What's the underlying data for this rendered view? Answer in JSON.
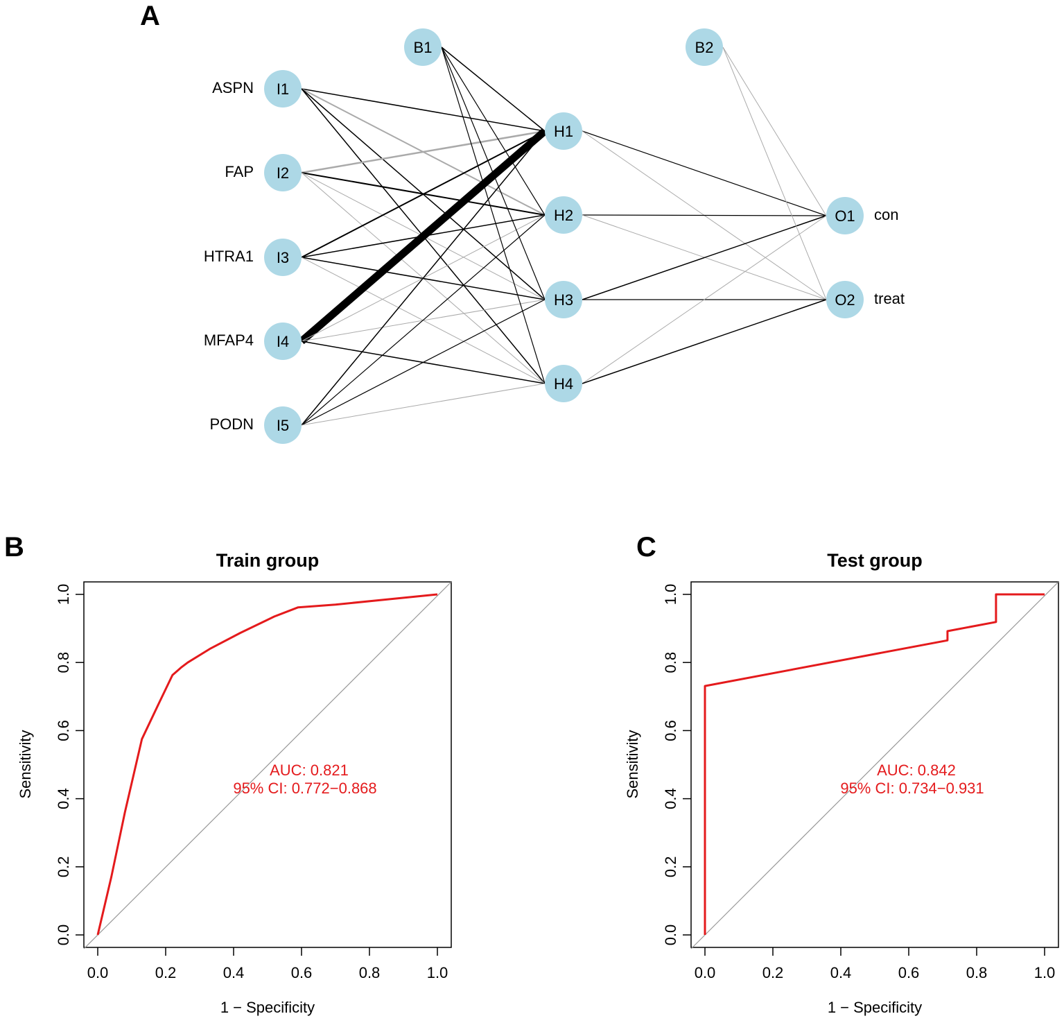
{
  "panels": {
    "a": "A",
    "b": "B",
    "c": "C"
  },
  "colors": {
    "node": "#add8e6",
    "positive": "#000000",
    "negative": "#aaaaaa",
    "roc": "#e41a1c",
    "diag": "#999999"
  },
  "chart_data": [
    {
      "type": "network",
      "panel": "A",
      "title": "",
      "layers": {
        "input": [
          {
            "id": "I1",
            "label": "ASPN"
          },
          {
            "id": "I2",
            "label": "FAP"
          },
          {
            "id": "I3",
            "label": "HTRA1"
          },
          {
            "id": "I4",
            "label": "MFAP4"
          },
          {
            "id": "I5",
            "label": "PODN"
          }
        ],
        "hidden": [
          {
            "id": "H1"
          },
          {
            "id": "H2"
          },
          {
            "id": "H3"
          },
          {
            "id": "H4"
          }
        ],
        "output": [
          {
            "id": "O1",
            "label": "con"
          },
          {
            "id": "O2",
            "label": "treat"
          }
        ],
        "bias": [
          {
            "id": "B1",
            "layer": "hidden"
          },
          {
            "id": "B2",
            "layer": "output"
          }
        ]
      },
      "edges": [
        {
          "from": "I1",
          "to": "H1",
          "sign": "pos",
          "weight": 1.5
        },
        {
          "from": "I1",
          "to": "H2",
          "sign": "neg",
          "weight": 2
        },
        {
          "from": "I1",
          "to": "H3",
          "sign": "pos",
          "weight": 1.5
        },
        {
          "from": "I1",
          "to": "H4",
          "sign": "pos",
          "weight": 1.5
        },
        {
          "from": "I2",
          "to": "H1",
          "sign": "neg",
          "weight": 2.5
        },
        {
          "from": "I2",
          "to": "H2",
          "sign": "pos",
          "weight": 2
        },
        {
          "from": "I2",
          "to": "H3",
          "sign": "neg",
          "weight": 1
        },
        {
          "from": "I2",
          "to": "H4",
          "sign": "neg",
          "weight": 1
        },
        {
          "from": "I3",
          "to": "H1",
          "sign": "pos",
          "weight": 2
        },
        {
          "from": "I3",
          "to": "H2",
          "sign": "pos",
          "weight": 1.5
        },
        {
          "from": "I3",
          "to": "H3",
          "sign": "pos",
          "weight": 1.5
        },
        {
          "from": "I3",
          "to": "H4",
          "sign": "neg",
          "weight": 1
        },
        {
          "from": "I4",
          "to": "H1",
          "sign": "pos",
          "weight": 11
        },
        {
          "from": "I4",
          "to": "H2",
          "sign": "neg",
          "weight": 1
        },
        {
          "from": "I4",
          "to": "H3",
          "sign": "neg",
          "weight": 1
        },
        {
          "from": "I4",
          "to": "H4",
          "sign": "pos",
          "weight": 1.5
        },
        {
          "from": "I5",
          "to": "H1",
          "sign": "pos",
          "weight": 1.5
        },
        {
          "from": "I5",
          "to": "H2",
          "sign": "pos",
          "weight": 1.2
        },
        {
          "from": "I5",
          "to": "H3",
          "sign": "pos",
          "weight": 1.2
        },
        {
          "from": "I5",
          "to": "H4",
          "sign": "neg",
          "weight": 1
        },
        {
          "from": "B1",
          "to": "H1",
          "sign": "pos",
          "weight": 1.5
        },
        {
          "from": "B1",
          "to": "H2",
          "sign": "pos",
          "weight": 1.2
        },
        {
          "from": "B1",
          "to": "H3",
          "sign": "pos",
          "weight": 1.2
        },
        {
          "from": "B1",
          "to": "H4",
          "sign": "pos",
          "weight": 1.2
        },
        {
          "from": "H1",
          "to": "O1",
          "sign": "pos",
          "weight": 1.2
        },
        {
          "from": "H1",
          "to": "O2",
          "sign": "neg",
          "weight": 1
        },
        {
          "from": "H2",
          "to": "O1",
          "sign": "pos",
          "weight": 1.2
        },
        {
          "from": "H2",
          "to": "O2",
          "sign": "neg",
          "weight": 1
        },
        {
          "from": "H3",
          "to": "O1",
          "sign": "pos",
          "weight": 1.5
        },
        {
          "from": "H3",
          "to": "O2",
          "sign": "pos",
          "weight": 1.2
        },
        {
          "from": "H4",
          "to": "O1",
          "sign": "neg",
          "weight": 1
        },
        {
          "from": "H4",
          "to": "O2",
          "sign": "pos",
          "weight": 1.5
        },
        {
          "from": "B2",
          "to": "O1",
          "sign": "neg",
          "weight": 1
        },
        {
          "from": "B2",
          "to": "O2",
          "sign": "neg",
          "weight": 1
        }
      ]
    },
    {
      "type": "line",
      "panel": "B",
      "title": "Train group",
      "xlabel": "1 − Specificity",
      "ylabel": "Sensitivity",
      "xlim": [
        0,
        1
      ],
      "ylim": [
        0,
        1
      ],
      "ticks": [
        "0.0",
        "0.2",
        "0.4",
        "0.6",
        "0.8",
        "1.0"
      ],
      "series": [
        {
          "name": "ROC",
          "x": [
            0.0,
            0.04,
            0.08,
            0.13,
            0.18,
            0.22,
            0.245,
            0.265,
            0.33,
            0.42,
            0.52,
            0.59,
            0.7,
            0.85,
            1.0
          ],
          "y": [
            0.0,
            0.17,
            0.36,
            0.575,
            0.68,
            0.763,
            0.785,
            0.8,
            0.84,
            0.887,
            0.935,
            0.962,
            0.97,
            0.985,
            1.0
          ]
        }
      ],
      "auc_text": "AUC: 0.821",
      "ci_text": "95% CI: 0.772−0.868"
    },
    {
      "type": "line",
      "panel": "C",
      "title": "Test group",
      "xlabel": "1 − Specificity",
      "ylabel": "Sensitivity",
      "xlim": [
        0,
        1
      ],
      "ylim": [
        0,
        1
      ],
      "ticks": [
        "0.0",
        "0.2",
        "0.4",
        "0.6",
        "0.8",
        "1.0"
      ],
      "series": [
        {
          "name": "ROC",
          "x": [
            0.0,
            0.0,
            0.714,
            0.714,
            0.857,
            0.857,
            1.0
          ],
          "y": [
            0.0,
            0.731,
            0.865,
            0.892,
            0.919,
            1.0,
            1.0
          ]
        }
      ],
      "auc_text": "AUC: 0.842",
      "ci_text": "95% CI: 0.734−0.931"
    }
  ]
}
